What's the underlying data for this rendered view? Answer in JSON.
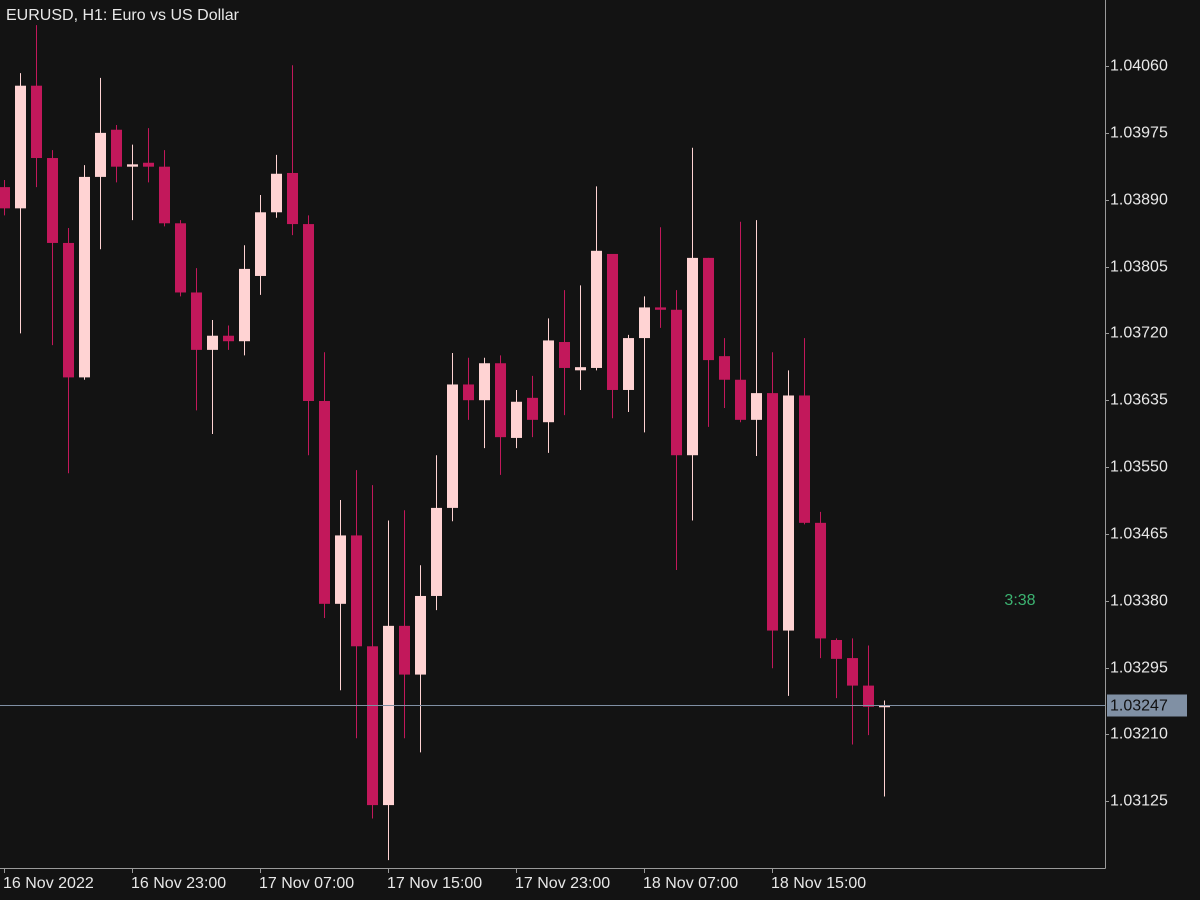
{
  "chart_data": {
    "type": "candlestick",
    "title": "EURUSD, H1:  Euro vs US Dollar",
    "countdown": "3:38",
    "categories": [
      "16 Nov 2022",
      null,
      null,
      null,
      null,
      null,
      null,
      null,
      "16 Nov 23:00",
      null,
      null,
      null,
      null,
      null,
      null,
      null,
      "17 Nov 07:00",
      null,
      null,
      null,
      null,
      null,
      null,
      null,
      "17 Nov 15:00",
      null,
      null,
      null,
      null,
      null,
      null,
      null,
      "17 Nov 23:00",
      null,
      null,
      null,
      null,
      null,
      null,
      null,
      "18 Nov 07:00",
      null,
      null,
      null,
      null,
      null,
      null,
      null,
      "18 Nov 15:00",
      null,
      null,
      null,
      null,
      null,
      null,
      null
    ],
    "open": [
      1.03906,
      1.03879,
      1.04035,
      1.03943,
      1.03835,
      1.03664,
      1.03919,
      1.03979,
      1.03932,
      1.03937,
      1.03932,
      1.0386,
      1.03772,
      1.03699,
      1.03717,
      1.0371,
      1.03793,
      1.03874,
      1.03924,
      1.03859,
      1.03634,
      1.03376,
      1.03463,
      1.03322,
      1.0312,
      1.03348,
      1.03286,
      1.03386,
      1.03498,
      1.03655,
      1.03635,
      1.03682,
      1.03587,
      1.03638,
      1.03607,
      1.03709,
      1.03673,
      1.03676,
      1.03821,
      1.03648,
      1.03714,
      1.03753,
      1.0375,
      1.03565,
      1.03816,
      1.03691,
      1.03661,
      1.0361,
      1.03644,
      1.03342,
      1.03641,
      1.03479,
      1.0333,
      1.03307,
      1.03272,
      1.03245
    ],
    "high": [
      1.03915,
      1.04051,
      1.04112,
      1.03953,
      1.03854,
      1.03934,
      1.04045,
      1.03985,
      1.0396,
      1.03981,
      1.03953,
      1.03864,
      1.03803,
      1.03737,
      1.0373,
      1.03832,
      1.03896,
      1.03947,
      1.04061,
      1.0387,
      1.03696,
      1.03508,
      1.03546,
      1.03527,
      1.03482,
      1.03495,
      1.03425,
      1.03565,
      1.03695,
      1.03689,
      1.03689,
      1.03692,
      1.03648,
      1.03666,
      1.03739,
      1.03775,
      1.03781,
      1.03907,
      1.03821,
      1.03718,
      1.03767,
      1.03855,
      1.03775,
      1.03956,
      1.03816,
      1.03714,
      1.03862,
      1.03864,
      1.03696,
      1.03673,
      1.03714,
      1.03493,
      1.03332,
      1.03332,
      1.03323,
      1.03253
    ],
    "low": [
      1.0387,
      1.0372,
      1.03906,
      1.03705,
      1.03542,
      1.03661,
      1.03827,
      1.03912,
      1.03864,
      1.03912,
      1.03856,
      1.03767,
      1.03622,
      1.03592,
      1.03699,
      1.03692,
      1.03769,
      1.03867,
      1.03845,
      1.03565,
      1.03358,
      1.03266,
      1.03205,
      1.03103,
      1.0305,
      1.03205,
      1.03187,
      1.03368,
      1.03481,
      1.0361,
      1.03574,
      1.0354,
      1.03574,
      1.03588,
      1.03568,
      1.03616,
      1.03648,
      1.03673,
      1.03612,
      1.0362,
      1.03594,
      1.03727,
      1.03419,
      1.03482,
      1.03601,
      1.03625,
      1.03607,
      1.03564,
      1.03294,
      1.03259,
      1.03477,
      1.03307,
      1.03256,
      1.03197,
      1.03209,
      1.03131
    ],
    "close": [
      1.03879,
      1.04035,
      1.03943,
      1.03835,
      1.03664,
      1.03919,
      1.03975,
      1.03932,
      1.03935,
      1.03932,
      1.0386,
      1.03772,
      1.03699,
      1.03717,
      1.0371,
      1.03802,
      1.03874,
      1.03923,
      1.03859,
      1.03634,
      1.03376,
      1.03463,
      1.03322,
      1.0312,
      1.03348,
      1.03286,
      1.03386,
      1.03498,
      1.03655,
      1.03635,
      1.03682,
      1.03588,
      1.03633,
      1.0361,
      1.03711,
      1.03676,
      1.03677,
      1.03825,
      1.03648,
      1.03714,
      1.03753,
      1.0375,
      1.03565,
      1.03816,
      1.03686,
      1.03661,
      1.0361,
      1.03644,
      1.03342,
      1.03641,
      1.03479,
      1.03332,
      1.03306,
      1.03272,
      1.03245,
      1.03247
    ],
    "up_color": "#ffd3d3",
    "down_color": "#c2185b",
    "last_price": 1.03247,
    "last_price_color": "#8090a4",
    "countdown_color": "#3cb371",
    "ylim": [
      1.0304,
      1.04144
    ],
    "yticks": [
      1.03125,
      {
        "value": 1.0321,
        "label": "1.03210"
      },
      1.03295,
      {
        "value": 1.0338,
        "label": "1.03380"
      },
      1.03465,
      {
        "value": 1.0355,
        "label": "1.03550"
      },
      1.03635,
      {
        "value": 1.0372,
        "label": "1.03720"
      },
      1.03805,
      {
        "value": 1.0389,
        "label": "1.03890"
      },
      1.03975,
      {
        "value": 1.0406,
        "label": "1.04060"
      }
    ]
  }
}
